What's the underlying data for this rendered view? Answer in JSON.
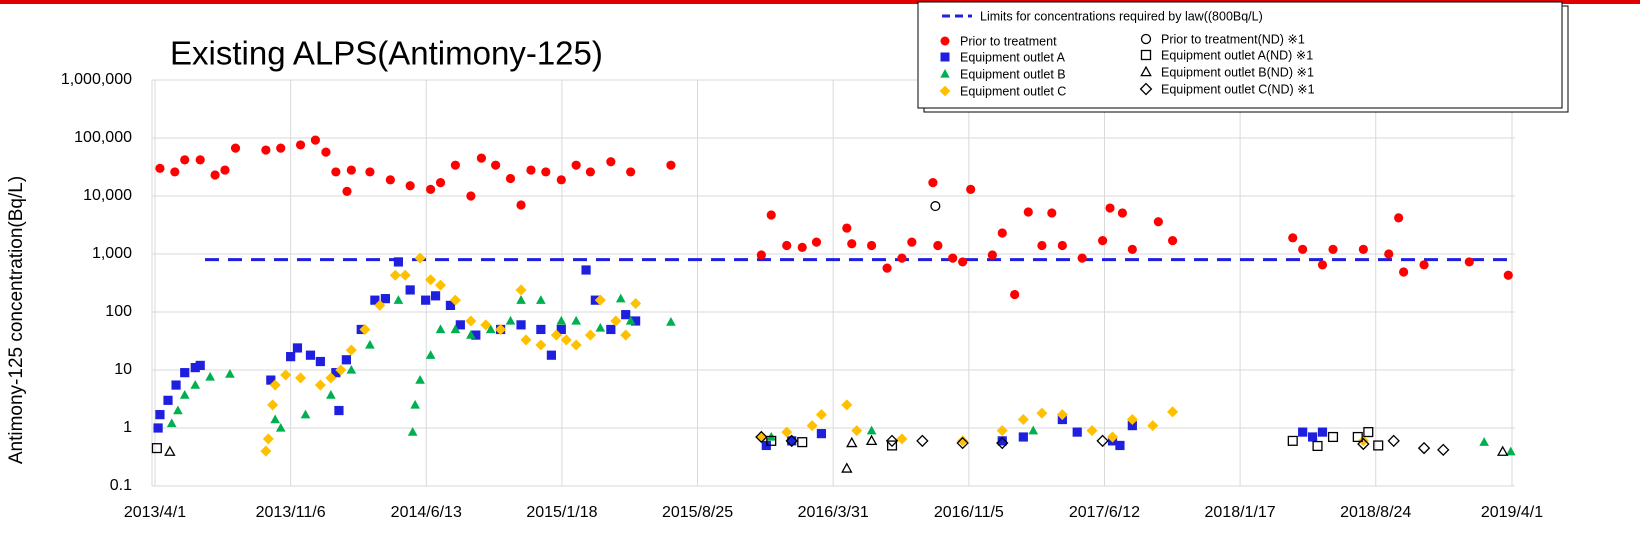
{
  "chart_data": {
    "type": "scatter",
    "title": "Existing ALPS(Antimony-125)",
    "y_label": "Antimony-125 concentration(Bq/L)",
    "log_y": true,
    "grid": true,
    "legend": "top-right",
    "xlim": [
      "2013/4/1",
      "2019/4/1"
    ],
    "xticks": [
      "2013/4/1",
      "2013/11/6",
      "2014/6/13",
      "2015/1/18",
      "2015/8/25",
      "2016/3/31",
      "2016/11/5",
      "2017/6/12",
      "2018/1/17",
      "2018/8/24",
      "2019/4/1"
    ],
    "ylim": [
      0.1,
      1000000
    ],
    "yticks": [
      0.1,
      1,
      10,
      100,
      {
        "value": 1000,
        "label": "1,000"
      },
      {
        "value": 10000,
        "label": "10,000"
      },
      {
        "value": 100000,
        "label": "100,000"
      },
      {
        "value": 1000000,
        "label": "1,000,000"
      }
    ],
    "limit": {
      "label": "Limits for concentrations required by law((800Bq/L)",
      "value": 800,
      "color": "#1f1fe0"
    },
    "series": [
      {
        "name": "Prior to treatment",
        "color": "#ff0000",
        "marker": "circle",
        "filled": true,
        "x": [
          "2013/4/9",
          "2013/5/3",
          "2013/5/19",
          "2013/6/13",
          "2013/7/7",
          "2013/7/23",
          "2013/8/9",
          "2013/9/27",
          "2013/10/21",
          "2013/11/22",
          "2013/12/16",
          "2014/1/2",
          "2014/1/18",
          "2014/2/5",
          "2014/2/12",
          "2014/3/14",
          "2014/4/16",
          "2014/5/18",
          "2014/6/20",
          "2014/7/6",
          "2014/7/30",
          "2014/8/24",
          "2014/9/10",
          "2014/10/3",
          "2014/10/27",
          "2014/11/13",
          "2014/11/29",
          "2014/12/23",
          "2015/1/17",
          "2015/2/10",
          "2015/3/5",
          "2015/4/7",
          "2015/5/9",
          "2015/7/13",
          "2015/12/6",
          "2015/12/22",
          "2016/1/16",
          "2016/2/10",
          "2016/3/4",
          "2016/4/22",
          "2016/4/30",
          "2016/6/1",
          "2016/6/26",
          "2016/7/20",
          "2016/8/5",
          "2016/9/8",
          "2016/9/16",
          "2016/10/10",
          "2016/10/26",
          "2016/11/8",
          "2016/12/13",
          "2016/12/29",
          "2017/1/18",
          "2017/2/9",
          "2017/3/3",
          "2017/3/19",
          "2017/4/5",
          "2017/5/7",
          "2017/6/9",
          "2017/6/21",
          "2017/7/11",
          "2017/7/27",
          "2017/9/7",
          "2017/9/30",
          "2018/4/12",
          "2018/4/28",
          "2018/5/30",
          "2018/6/16",
          "2018/8/4",
          "2018/9/14",
          "2018/9/30",
          "2018/10/8",
          "2018/11/10",
          "2019/1/22",
          "2019/3/26"
        ],
        "values": [
          30000,
          26000,
          42000,
          42000,
          23000,
          28000,
          67000,
          62000,
          67000,
          76000,
          92000,
          57000,
          26000,
          12000,
          28000,
          26000,
          19000,
          15000,
          13000,
          17000,
          34000,
          10000,
          45000,
          34000,
          20000,
          7000,
          28000,
          26000,
          19000,
          34000,
          26000,
          39000,
          26000,
          34000,
          960,
          4700,
          1400,
          1300,
          1600,
          2800,
          1500,
          1400,
          570,
          850,
          1600,
          17000,
          1400,
          850,
          730,
          13000,
          960,
          2300,
          200,
          5300,
          1400,
          5100,
          1400,
          850,
          1700,
          6200,
          5100,
          1200,
          3600,
          1700,
          1900,
          1200,
          650,
          1200,
          1200,
          1000,
          4200,
          490,
          650,
          730,
          430
        ]
      },
      {
        "name": "Equipment outlet A",
        "color": "#1f1fe0",
        "marker": "square",
        "filled": true,
        "x": [
          "2013/4/6",
          "2013/4/9",
          "2013/4/22",
          "2013/5/5",
          "2013/5/19",
          "2013/6/5",
          "2013/6/13",
          "2013/10/5",
          "2013/11/6",
          "2013/11/17",
          "2013/12/8",
          "2013/12/24",
          "2014/1/18",
          "2014/1/23",
          "2014/2/4",
          "2014/2/28",
          "2014/3/22",
          "2014/4/8",
          "2014/4/29",
          "2014/5/18",
          "2014/6/12",
          "2014/6/28",
          "2014/7/22",
          "2014/8/7",
          "2014/9/1",
          "2014/10/11",
          "2014/11/13",
          "2014/12/15",
          "2015/1/1",
          "2015/1/17",
          "2015/2/26",
          "2015/3/13",
          "2015/4/7",
          "2015/5/1",
          "2015/5/17",
          "2015/12/14",
          "2016/1/24",
          "2016/3/12",
          "2016/12/29",
          "2017/2/1",
          "2017/4/5",
          "2017/4/29",
          "2017/6/25",
          "2017/7/7",
          "2017/7/27",
          "2018/4/28",
          "2018/5/14",
          "2018/5/30"
        ],
        "values": [
          1,
          1.7,
          3,
          5.5,
          9,
          11,
          12,
          6.7,
          17,
          24,
          18,
          14,
          9,
          2,
          15,
          50,
          160,
          170,
          730,
          240,
          160,
          190,
          130,
          60,
          40,
          50,
          60,
          50,
          18,
          50,
          530,
          160,
          50,
          90,
          70,
          0.5,
          0.6,
          0.8,
          0.6,
          0.7,
          1.4,
          0.85,
          0.6,
          0.5,
          1.1,
          0.85,
          0.7,
          0.85
        ]
      },
      {
        "name": "Equipment outlet B",
        "color": "#00b050",
        "marker": "triangle",
        "filled": true,
        "x": [
          "2013/4/28",
          "2013/5/8",
          "2013/5/19",
          "2013/6/5",
          "2013/6/29",
          "2013/7/31",
          "2013/10/12",
          "2013/10/21",
          "2013/11/30",
          "2014/1/10",
          "2014/2/12",
          "2014/3/14",
          "2014/4/29",
          "2014/5/22",
          "2014/5/26",
          "2014/6/3",
          "2014/6/20",
          "2014/7/6",
          "2014/7/30",
          "2014/8/24",
          "2014/9/25",
          "2014/10/27",
          "2014/11/13",
          "2014/12/15",
          "2015/1/17",
          "2015/2/10",
          "2015/3/21",
          "2015/4/23",
          "2015/5/9",
          "2015/7/13",
          "2015/12/22",
          "2016/6/1",
          "2017/2/17",
          "2019/2/15",
          "2019/3/30"
        ],
        "values": [
          1.2,
          2,
          3.7,
          5.5,
          7.6,
          8.5,
          1.4,
          1,
          1.7,
          3.7,
          10,
          27,
          160,
          0.85,
          2.5,
          6.7,
          18,
          50,
          50,
          40,
          50,
          70,
          160,
          160,
          70,
          70,
          53,
          170,
          70,
          67,
          0.7,
          0.9,
          0.9,
          0.57,
          0.39
        ]
      },
      {
        "name": "Equipment outlet C",
        "color": "#ffc000",
        "marker": "diamond",
        "filled": true,
        "x": [
          "2013/9/27",
          "2013/10/1",
          "2013/10/8",
          "2013/10/12",
          "2013/10/29",
          "2013/11/22",
          "2013/12/24",
          "2014/1/10",
          "2014/1/26",
          "2014/2/12",
          "2014/3/6",
          "2014/3/30",
          "2014/4/24",
          "2014/5/10",
          "2014/6/3",
          "2014/6/20",
          "2014/7/6",
          "2014/7/30",
          "2014/8/24",
          "2014/9/17",
          "2014/10/11",
          "2014/11/13",
          "2014/11/21",
          "2014/12/15",
          "2015/1/9",
          "2015/1/25",
          "2015/2/10",
          "2015/3/5",
          "2015/3/21",
          "2015/4/15",
          "2015/5/1",
          "2015/5/17",
          "2015/12/6",
          "2016/1/16",
          "2016/2/26",
          "2016/3/12",
          "2016/4/22",
          "2016/5/8",
          "2016/7/20",
          "2016/10/26",
          "2016/12/29",
          "2017/2/1",
          "2017/3/3",
          "2017/4/5",
          "2017/5/23",
          "2017/6/25",
          "2017/7/27",
          "2017/8/29",
          "2017/9/30",
          "2018/8/4"
        ],
        "values": [
          0.4,
          0.65,
          2.5,
          5.5,
          8.2,
          7.3,
          5.5,
          7.3,
          10,
          22,
          50,
          130,
          430,
          430,
          850,
          360,
          290,
          160,
          70,
          60,
          50,
          240,
          33,
          27,
          40,
          33,
          27,
          40,
          160,
          70,
          40,
          140,
          0.7,
          0.85,
          1.1,
          1.7,
          2.5,
          0.9,
          0.65,
          0.6,
          0.9,
          1.4,
          1.8,
          1.7,
          0.9,
          0.7,
          1.4,
          1.1,
          1.9,
          0.6
        ]
      },
      {
        "name": "Prior to treatment(ND) ※1",
        "color": "#000000",
        "marker": "circle",
        "filled": false,
        "x": [
          "2016/9/12"
        ],
        "values": [
          6700
        ]
      },
      {
        "name": "Equipment outlet A(ND) ※1",
        "color": "#000000",
        "marker": "square",
        "filled": false,
        "x": [
          "2013/4/4",
          "2015/12/22",
          "2016/2/10",
          "2016/7/4",
          "2018/4/12",
          "2018/5/22",
          "2018/6/16",
          "2018/7/26",
          "2018/8/12",
          "2018/8/28"
        ],
        "values": [
          0.45,
          0.6,
          0.57,
          0.5,
          0.6,
          0.49,
          0.7,
          0.7,
          0.85,
          0.5
        ]
      },
      {
        "name": "Equipment outlet B(ND) ※1",
        "color": "#000000",
        "marker": "triangle",
        "filled": false,
        "x": [
          "2013/4/25",
          "2016/4/22",
          "2016/4/30",
          "2016/6/1",
          "2019/3/17"
        ],
        "values": [
          0.39,
          0.2,
          0.55,
          0.6,
          0.39
        ]
      },
      {
        "name": "Equipment outlet C(ND) ※1",
        "color": "#000000",
        "marker": "diamond",
        "filled": false,
        "x": [
          "2015/12/6",
          "2016/1/24",
          "2016/7/4",
          "2016/8/22",
          "2016/10/26",
          "2016/12/29",
          "2017/6/9",
          "2018/8/4",
          "2018/9/22",
          "2018/11/10",
          "2018/12/11"
        ],
        "values": [
          0.7,
          0.6,
          0.6,
          0.6,
          0.55,
          0.55,
          0.6,
          0.53,
          0.6,
          0.45,
          0.42
        ]
      }
    ]
  }
}
